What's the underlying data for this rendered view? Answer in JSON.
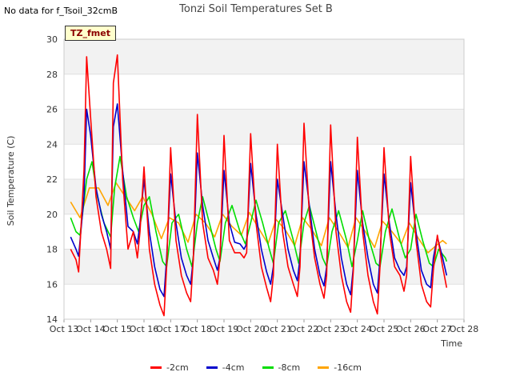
{
  "note": "No data for f_Tsoil_32cmB",
  "badge": "TZ_fmet",
  "chart_data": {
    "type": "line",
    "title": "Tonzi Soil Temperatures Set B",
    "xlabel": "Time",
    "ylabel": "Soil Temperature (C)",
    "ylim": [
      14,
      30
    ],
    "yticks": [
      14,
      16,
      18,
      20,
      22,
      24,
      26,
      28,
      30
    ],
    "xlim": [
      13,
      28
    ],
    "xticks": [
      13,
      14,
      15,
      16,
      17,
      18,
      19,
      20,
      21,
      22,
      23,
      24,
      25,
      26,
      27,
      28
    ],
    "xtick_labels": [
      "Oct 13",
      "Oct 14",
      "Oct 15",
      "Oct 16",
      "Oct 17",
      "Oct 18",
      "Oct 19",
      "Oct 20",
      "Oct 21",
      "Oct 22",
      "Oct 23",
      "Oct 24",
      "Oct 25",
      "Oct 26",
      "Oct 27",
      "Oct 28"
    ],
    "grid": true,
    "legend_position": "bottom-center",
    "series": [
      {
        "name": "-2cm",
        "color": "#ff0000",
        "x": [
          13.25,
          13.45,
          13.55,
          13.75,
          13.85,
          14.0,
          14.2,
          14.4,
          14.6,
          14.75,
          14.85,
          15.0,
          15.2,
          15.4,
          15.6,
          15.75,
          15.85,
          16.0,
          16.2,
          16.4,
          16.6,
          16.75,
          16.85,
          17.0,
          17.2,
          17.4,
          17.6,
          17.75,
          17.85,
          18.0,
          18.2,
          18.4,
          18.6,
          18.75,
          18.85,
          19.0,
          19.2,
          19.4,
          19.6,
          19.75,
          19.85,
          20.0,
          20.2,
          20.4,
          20.6,
          20.75,
          20.85,
          21.0,
          21.2,
          21.4,
          21.6,
          21.75,
          21.85,
          22.0,
          22.2,
          22.4,
          22.6,
          22.75,
          22.85,
          23.0,
          23.2,
          23.4,
          23.6,
          23.75,
          23.85,
          24.0,
          24.2,
          24.4,
          24.6,
          24.75,
          24.85,
          25.0,
          25.2,
          25.4,
          25.6,
          25.75,
          25.85,
          26.0,
          26.2,
          26.4,
          26.6,
          26.75,
          26.85,
          27.0,
          27.2,
          27.35
        ],
        "y": [
          18.0,
          17.4,
          16.7,
          22.5,
          29.0,
          25.5,
          21.0,
          19.0,
          18.0,
          16.9,
          27.5,
          29.1,
          22.0,
          18.0,
          19.0,
          17.5,
          19.0,
          22.7,
          18.0,
          16.0,
          14.8,
          14.2,
          17.0,
          23.8,
          18.5,
          16.5,
          15.5,
          15.0,
          17.5,
          25.7,
          19.5,
          17.5,
          16.8,
          16.0,
          17.5,
          24.5,
          18.5,
          17.8,
          17.8,
          17.5,
          17.8,
          24.6,
          19.5,
          17.0,
          15.8,
          15.0,
          16.5,
          24.0,
          19.0,
          17.0,
          16.0,
          15.3,
          17.0,
          25.2,
          20.0,
          17.5,
          16.0,
          15.2,
          16.5,
          25.1,
          19.0,
          16.5,
          15.0,
          14.4,
          16.8,
          24.4,
          19.0,
          16.5,
          15.0,
          14.3,
          17.0,
          23.8,
          19.0,
          17.0,
          16.5,
          15.6,
          16.5,
          23.3,
          18.5,
          16.0,
          15.0,
          14.7,
          16.8,
          18.8,
          17.0,
          15.8
        ]
      },
      {
        "name": "-4cm",
        "color": "#0000cc",
        "x": [
          13.25,
          13.45,
          13.55,
          13.75,
          13.85,
          14.0,
          14.2,
          14.4,
          14.6,
          14.75,
          14.85,
          15.0,
          15.2,
          15.4,
          15.6,
          15.75,
          15.85,
          16.0,
          16.2,
          16.4,
          16.6,
          16.75,
          16.85,
          17.0,
          17.2,
          17.4,
          17.6,
          17.75,
          17.85,
          18.0,
          18.2,
          18.4,
          18.6,
          18.75,
          18.85,
          19.0,
          19.2,
          19.4,
          19.6,
          19.75,
          19.85,
          20.0,
          20.2,
          20.4,
          20.6,
          20.75,
          20.85,
          21.0,
          21.2,
          21.4,
          21.6,
          21.75,
          21.85,
          22.0,
          22.2,
          22.4,
          22.6,
          22.75,
          22.85,
          23.0,
          23.2,
          23.4,
          23.6,
          23.75,
          23.85,
          24.0,
          24.2,
          24.4,
          24.6,
          24.75,
          24.85,
          25.0,
          25.2,
          25.4,
          25.6,
          25.75,
          25.85,
          26.0,
          26.2,
          26.4,
          26.6,
          26.75,
          26.85,
          27.0,
          27.2,
          27.35
        ],
        "y": [
          18.7,
          18.0,
          17.6,
          21.0,
          26.0,
          24.5,
          21.5,
          20.0,
          19.0,
          18.0,
          25.0,
          26.3,
          22.5,
          19.3,
          19.0,
          18.3,
          19.5,
          22.0,
          19.0,
          17.0,
          15.7,
          15.3,
          17.5,
          22.3,
          19.5,
          17.5,
          16.5,
          16.0,
          17.5,
          23.5,
          20.5,
          18.5,
          17.5,
          16.8,
          17.5,
          22.5,
          19.5,
          18.4,
          18.3,
          18.0,
          18.3,
          22.9,
          20.0,
          18.0,
          16.7,
          16.0,
          17.0,
          22.0,
          20.0,
          18.0,
          16.8,
          16.2,
          17.5,
          23.0,
          20.5,
          18.0,
          16.5,
          15.9,
          17.0,
          23.0,
          20.0,
          17.5,
          16.0,
          15.4,
          17.0,
          22.5,
          19.5,
          17.5,
          16.0,
          15.5,
          17.5,
          22.3,
          19.5,
          17.5,
          16.8,
          16.5,
          17.0,
          21.8,
          19.0,
          16.8,
          16.0,
          15.8,
          17.5,
          18.7,
          17.5,
          16.5
        ]
      },
      {
        "name": "-8cm",
        "color": "#00dd00",
        "x": [
          13.25,
          13.45,
          13.6,
          13.85,
          14.05,
          14.25,
          14.5,
          14.75,
          14.9,
          15.1,
          15.35,
          15.6,
          15.8,
          16.0,
          16.2,
          16.45,
          16.7,
          16.85,
          17.05,
          17.3,
          17.6,
          17.8,
          18.0,
          18.2,
          18.45,
          18.7,
          18.85,
          19.05,
          19.3,
          19.6,
          19.8,
          20.0,
          20.2,
          20.45,
          20.7,
          20.85,
          21.05,
          21.3,
          21.6,
          21.8,
          22.0,
          22.2,
          22.45,
          22.7,
          22.85,
          23.05,
          23.3,
          23.6,
          23.8,
          24.0,
          24.2,
          24.45,
          24.7,
          24.85,
          25.05,
          25.3,
          25.6,
          25.8,
          26.0,
          26.2,
          26.45,
          26.7,
          26.85,
          27.05,
          27.3,
          27.35
        ],
        "y": [
          19.8,
          19.0,
          18.8,
          22.0,
          23.0,
          21.0,
          19.5,
          18.7,
          21.5,
          23.3,
          21.0,
          19.8,
          19.0,
          20.5,
          21.0,
          19.0,
          17.3,
          17.0,
          19.5,
          20.0,
          18.0,
          17.0,
          19.5,
          21.0,
          19.5,
          18.0,
          17.3,
          19.5,
          20.5,
          19.0,
          18.3,
          19.5,
          20.8,
          19.5,
          18.0,
          17.2,
          19.5,
          20.2,
          18.5,
          17.2,
          19.5,
          20.5,
          19.0,
          17.5,
          17.0,
          19.0,
          20.2,
          18.5,
          17.0,
          18.5,
          20.2,
          18.5,
          17.2,
          17.0,
          19.0,
          20.3,
          18.5,
          17.5,
          18.0,
          20.0,
          18.5,
          17.2,
          17.0,
          18.0,
          17.5,
          17.3
        ]
      },
      {
        "name": "-16cm",
        "color": "#ffa500",
        "x": [
          13.25,
          13.6,
          13.95,
          14.3,
          14.65,
          14.95,
          15.3,
          15.65,
          15.95,
          16.3,
          16.65,
          16.95,
          17.3,
          17.65,
          17.95,
          18.3,
          18.65,
          18.95,
          19.3,
          19.65,
          19.95,
          20.3,
          20.65,
          20.95,
          21.3,
          21.65,
          21.95,
          22.3,
          22.65,
          22.95,
          23.3,
          23.65,
          23.95,
          24.3,
          24.65,
          24.95,
          25.3,
          25.65,
          25.95,
          26.3,
          26.65,
          26.95,
          27.2,
          27.35
        ],
        "y": [
          20.7,
          19.8,
          21.5,
          21.5,
          20.5,
          21.8,
          21.0,
          20.2,
          21.0,
          20.0,
          18.6,
          19.8,
          19.5,
          18.4,
          20.0,
          19.5,
          18.7,
          20.0,
          19.3,
          18.8,
          20.1,
          19.2,
          18.3,
          19.7,
          19.1,
          18.2,
          19.8,
          19.1,
          18.2,
          19.8,
          19.0,
          18.1,
          19.8,
          19.0,
          18.1,
          19.6,
          19.0,
          18.3,
          19.5,
          18.6,
          17.8,
          18.2,
          18.5,
          18.3
        ]
      }
    ]
  }
}
